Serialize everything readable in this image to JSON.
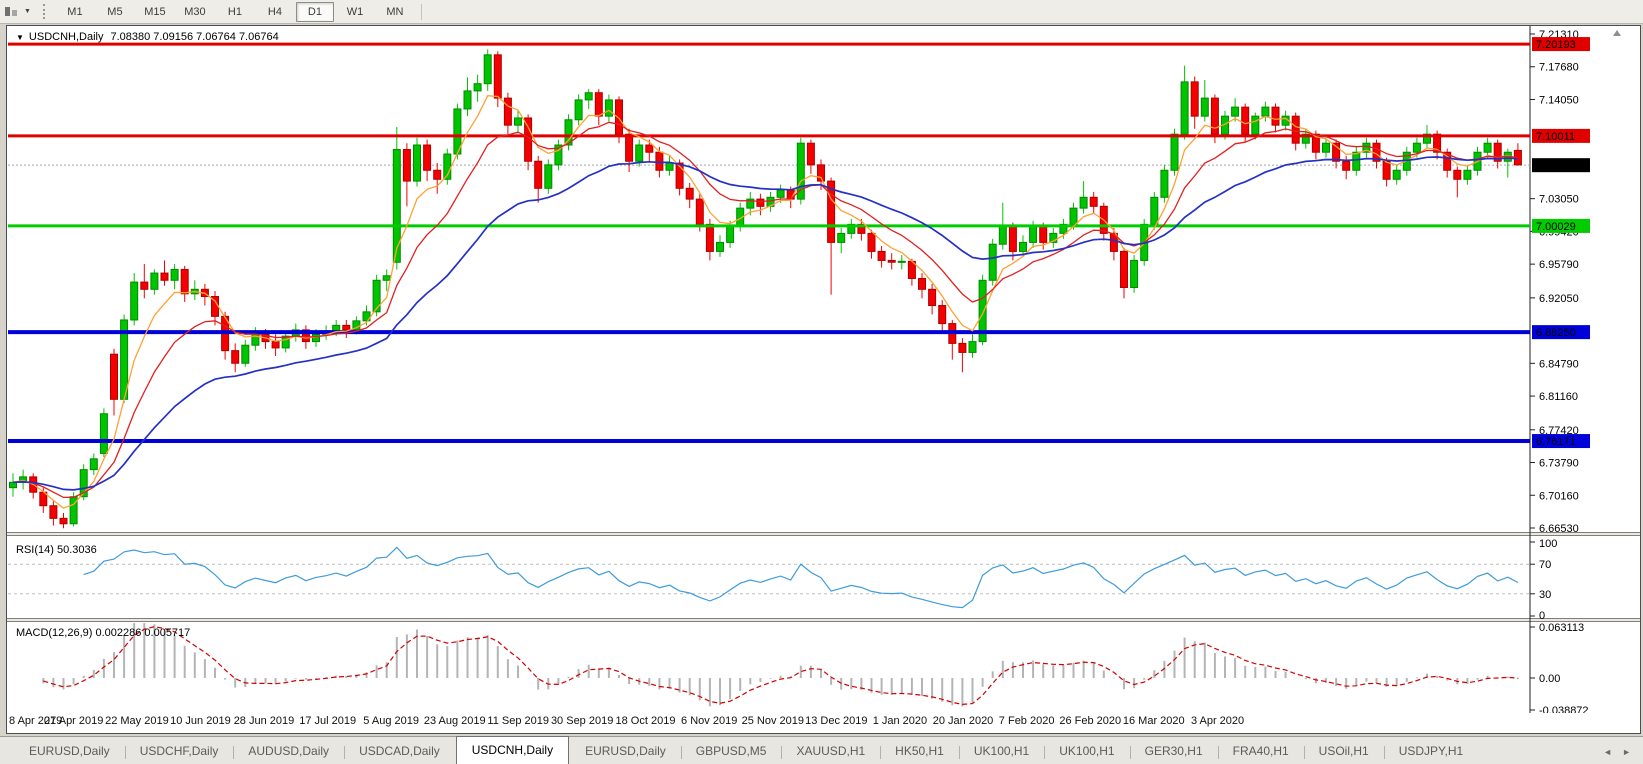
{
  "window": {
    "title_symbol": "USDCNH,Daily",
    "title_ohlc": "7.08380 7.09156 7.06764 7.06764"
  },
  "icons": {
    "caret_down": "▼",
    "scroll_left": "◄",
    "scroll_right": "►"
  },
  "toolbar": {
    "timeframes": [
      {
        "label": "M1",
        "active": false
      },
      {
        "label": "M5",
        "active": false
      },
      {
        "label": "M15",
        "active": false
      },
      {
        "label": "M30",
        "active": false
      },
      {
        "label": "H1",
        "active": false
      },
      {
        "label": "H4",
        "active": false
      },
      {
        "label": "D1",
        "active": true
      },
      {
        "label": "W1",
        "active": false
      },
      {
        "label": "MN",
        "active": false
      }
    ]
  },
  "price_axis": {
    "ticks": [
      {
        "label": "7.21310",
        "value": 7.2131
      },
      {
        "label": "7.17680",
        "value": 7.1768
      },
      {
        "label": "7.14050",
        "value": 7.1405
      },
      {
        "label": "7.03050",
        "value": 7.0305
      },
      {
        "label": "6.99420",
        "value": 6.9942
      },
      {
        "label": "6.95790",
        "value": 6.9579
      },
      {
        "label": "6.92050",
        "value": 6.9205
      },
      {
        "label": "6.84790",
        "value": 6.8479
      },
      {
        "label": "6.81160",
        "value": 6.8116
      },
      {
        "label": "6.77420",
        "value": 6.7742
      },
      {
        "label": "6.73790",
        "value": 6.7379
      },
      {
        "label": "6.70160",
        "value": 6.7016
      },
      {
        "label": "6.66530",
        "value": 6.6653
      }
    ],
    "line_labels": [
      {
        "label": "7.20193",
        "value": 7.20193,
        "bg": "#e00000",
        "fg": "#ffffff"
      },
      {
        "label": "7.10011",
        "value": 7.10011,
        "bg": "#e00000",
        "fg": "#ffffff"
      },
      {
        "label": "7.06764",
        "value": 7.06764,
        "bg": "#000000",
        "fg": "#ffffff"
      },
      {
        "label": "7.00029",
        "value": 7.00029,
        "bg": "#00cc00",
        "fg": "#ffffff"
      },
      {
        "label": "6.88250",
        "value": 6.8825,
        "bg": "#0000d8",
        "fg": "#ffffff"
      },
      {
        "label": "6.76171",
        "value": 6.76171,
        "bg": "#0000d8",
        "fg": "#ffffff"
      }
    ]
  },
  "chart_data": {
    "type": "candlestick",
    "symbol": "USDCNH",
    "timeframe": "Daily",
    "price_range": {
      "max": 7.2131,
      "min": 6.6653
    },
    "current_price": 7.06764,
    "up_color": "#00c400",
    "down_color": "#f40000",
    "ma_colors": {
      "fast": "#ffa133",
      "mid": "#e02020",
      "slow": "#2431c4"
    },
    "horizontal_lines": [
      {
        "value": 7.20193,
        "color": "#e00000",
        "width": 3
      },
      {
        "value": 7.10011,
        "color": "#e00000",
        "width": 3
      },
      {
        "value": 7.00029,
        "color": "#00cc00",
        "width": 3
      },
      {
        "value": 6.8825,
        "color": "#0000d8",
        "width": 4
      },
      {
        "value": 6.76171,
        "color": "#0000d8",
        "width": 4
      }
    ],
    "x_labels": [
      "8 Apr 2019",
      "27 Apr 2019",
      "22 May 2019",
      "10 Jun 2019",
      "28 Jun 2019",
      "17 Jul 2019",
      "5 Aug 2019",
      "23 Aug 2019",
      "11 Sep 2019",
      "30 Sep 2019",
      "18 Oct 2019",
      "6 Nov 2019",
      "25 Nov 2019",
      "13 Dec 2019",
      "1 Jan 2020",
      "20 Jan 2020",
      "7 Feb 2020",
      "26 Feb 2020",
      "16 Mar 2020",
      "3 Apr 2020"
    ],
    "candles": [
      [
        6.71,
        6.726,
        6.7,
        6.716
      ],
      [
        6.716,
        6.73,
        6.708,
        6.722
      ],
      [
        6.722,
        6.726,
        6.698,
        6.705
      ],
      [
        6.705,
        6.71,
        6.682,
        6.69
      ],
      [
        6.69,
        6.695,
        6.668,
        6.676
      ],
      [
        6.676,
        6.682,
        6.665,
        6.67
      ],
      [
        6.67,
        6.705,
        6.667,
        6.7
      ],
      [
        6.7,
        6.736,
        6.696,
        6.73
      ],
      [
        6.73,
        6.748,
        6.724,
        6.742
      ],
      [
        6.748,
        6.798,
        6.744,
        6.792
      ],
      [
        6.858,
        6.864,
        6.79,
        6.808
      ],
      [
        6.808,
        6.902,
        6.804,
        6.896
      ],
      [
        6.896,
        6.948,
        6.89,
        6.938
      ],
      [
        6.938,
        6.958,
        6.92,
        6.93
      ],
      [
        6.93,
        6.952,
        6.924,
        6.948
      ],
      [
        6.948,
        6.962,
        6.934,
        6.94
      ],
      [
        6.94,
        6.958,
        6.93,
        6.952
      ],
      [
        6.952,
        6.956,
        6.916,
        6.925
      ],
      [
        6.925,
        6.94,
        6.918,
        6.93
      ],
      [
        6.93,
        6.936,
        6.912,
        6.922
      ],
      [
        6.922,
        6.928,
        6.89,
        6.9
      ],
      [
        6.9,
        6.905,
        6.852,
        6.862
      ],
      [
        6.862,
        6.87,
        6.838,
        6.848
      ],
      [
        6.848,
        6.874,
        6.844,
        6.868
      ],
      [
        6.868,
        6.888,
        6.862,
        6.88
      ],
      [
        6.88,
        6.886,
        6.864,
        6.872
      ],
      [
        6.872,
        6.88,
        6.856,
        6.865
      ],
      [
        6.865,
        6.884,
        6.86,
        6.878
      ],
      [
        6.878,
        6.892,
        6.872,
        6.885
      ],
      [
        6.885,
        6.89,
        6.864,
        6.872
      ],
      [
        6.872,
        6.886,
        6.866,
        6.88
      ],
      [
        6.88,
        6.89,
        6.874,
        6.884
      ],
      [
        6.884,
        6.896,
        6.878,
        6.89
      ],
      [
        6.89,
        6.896,
        6.876,
        6.885
      ],
      [
        6.885,
        6.9,
        6.88,
        6.895
      ],
      [
        6.895,
        6.912,
        6.89,
        6.905
      ],
      [
        6.905,
        6.946,
        6.9,
        6.94
      ],
      [
        6.94,
        6.952,
        6.928,
        6.945
      ],
      [
        6.96,
        7.11,
        6.952,
        7.085
      ],
      [
        7.085,
        7.092,
        7.022,
        7.05
      ],
      [
        7.05,
        7.098,
        7.044,
        7.09
      ],
      [
        7.09,
        7.096,
        7.05,
        7.062
      ],
      [
        7.062,
        7.07,
        7.036,
        7.052
      ],
      [
        7.052,
        7.086,
        7.046,
        7.08
      ],
      [
        7.08,
        7.136,
        7.074,
        7.13
      ],
      [
        7.13,
        7.165,
        7.122,
        7.15
      ],
      [
        7.15,
        7.168,
        7.138,
        7.158
      ],
      [
        7.158,
        7.196,
        7.15,
        7.19
      ],
      [
        7.19,
        7.194,
        7.132,
        7.142
      ],
      [
        7.142,
        7.148,
        7.1,
        7.112
      ],
      [
        7.112,
        7.128,
        7.104,
        7.12
      ],
      [
        7.12,
        7.124,
        7.062,
        7.072
      ],
      [
        7.072,
        7.078,
        7.026,
        7.042
      ],
      [
        7.042,
        7.074,
        7.036,
        7.068
      ],
      [
        7.068,
        7.096,
        7.062,
        7.09
      ],
      [
        7.09,
        7.124,
        7.084,
        7.118
      ],
      [
        7.118,
        7.146,
        7.112,
        7.14
      ],
      [
        7.14,
        7.152,
        7.13,
        7.148
      ],
      [
        7.148,
        7.152,
        7.112,
        7.122
      ],
      [
        7.122,
        7.146,
        7.116,
        7.14
      ],
      [
        7.14,
        7.144,
        7.092,
        7.102
      ],
      [
        7.102,
        7.108,
        7.06,
        7.072
      ],
      [
        7.072,
        7.096,
        7.066,
        7.09
      ],
      [
        7.09,
        7.096,
        7.072,
        7.082
      ],
      [
        7.082,
        7.088,
        7.054,
        7.062
      ],
      [
        7.062,
        7.078,
        7.056,
        7.07
      ],
      [
        7.07,
        7.074,
        7.034,
        7.042
      ],
      [
        7.042,
        7.048,
        7.02,
        7.03
      ],
      [
        7.03,
        7.036,
        6.994,
        7.002
      ],
      [
        7.002,
        7.008,
        6.962,
        6.972
      ],
      [
        6.972,
        6.99,
        6.966,
        6.982
      ],
      [
        6.982,
        7.006,
        6.976,
        7.0
      ],
      [
        7.0,
        7.026,
        6.994,
        7.02
      ],
      [
        7.02,
        7.038,
        7.012,
        7.03
      ],
      [
        7.03,
        7.036,
        7.012,
        7.022
      ],
      [
        7.022,
        7.038,
        7.016,
        7.032
      ],
      [
        7.032,
        7.046,
        7.026,
        7.04
      ],
      [
        7.04,
        7.044,
        7.02,
        7.03
      ],
      [
        7.03,
        7.098,
        7.024,
        7.092
      ],
      [
        7.092,
        7.096,
        7.058,
        7.068
      ],
      [
        7.068,
        7.074,
        7.04,
        7.05
      ],
      [
        7.05,
        7.054,
        6.924,
        6.982
      ],
      [
        6.982,
        6.998,
        6.97,
        6.992
      ],
      [
        6.992,
        7.008,
        6.986,
        7.002
      ],
      [
        7.002,
        7.008,
        6.984,
        6.992
      ],
      [
        6.992,
        6.996,
        6.964,
        6.972
      ],
      [
        6.972,
        6.978,
        6.954,
        6.962
      ],
      [
        6.962,
        6.97,
        6.952,
        6.96
      ],
      [
        6.96,
        6.968,
        6.952,
        6.961
      ],
      [
        6.961,
        6.964,
        6.934,
        6.942
      ],
      [
        6.942,
        6.948,
        6.92,
        6.93
      ],
      [
        6.93,
        6.936,
        6.902,
        6.912
      ],
      [
        6.912,
        6.918,
        6.884,
        6.892
      ],
      [
        6.892,
        6.896,
        6.852,
        6.87
      ],
      [
        6.87,
        6.876,
        6.838,
        6.86
      ],
      [
        6.86,
        6.88,
        6.854,
        6.872
      ],
      [
        6.872,
        6.946,
        6.868,
        6.94
      ],
      [
        6.94,
        6.986,
        6.934,
        6.98
      ],
      [
        6.98,
        7.026,
        6.974,
        7.0
      ],
      [
        7.0,
        7.004,
        6.962,
        6.972
      ],
      [
        6.972,
        6.99,
        6.966,
        6.982
      ],
      [
        6.982,
        7.006,
        6.976,
        7.0
      ],
      [
        7.0,
        7.004,
        6.974,
        6.982
      ],
      [
        6.982,
        6.998,
        6.976,
        6.992
      ],
      [
        6.992,
        7.008,
        6.986,
        7.002
      ],
      [
        7.002,
        7.026,
        6.996,
        7.02
      ],
      [
        7.02,
        7.05,
        7.014,
        7.032
      ],
      [
        7.032,
        7.038,
        7.014,
        7.022
      ],
      [
        7.022,
        7.026,
        6.984,
        6.992
      ],
      [
        6.992,
        6.998,
        6.962,
        6.972
      ],
      [
        6.972,
        6.976,
        6.92,
        6.932
      ],
      [
        6.932,
        6.968,
        6.926,
        6.962
      ],
      [
        6.962,
        7.008,
        6.956,
        7.002
      ],
      [
        7.002,
        7.038,
        6.996,
        7.032
      ],
      [
        7.032,
        7.068,
        7.026,
        7.062
      ],
      [
        7.062,
        7.108,
        7.056,
        7.102
      ],
      [
        7.102,
        7.178,
        7.096,
        7.16
      ],
      [
        7.16,
        7.166,
        7.108,
        7.122
      ],
      [
        7.122,
        7.162,
        7.116,
        7.142
      ],
      [
        7.142,
        7.146,
        7.092,
        7.102
      ],
      [
        7.102,
        7.128,
        7.096,
        7.122
      ],
      [
        7.122,
        7.142,
        7.116,
        7.132
      ],
      [
        7.132,
        7.136,
        7.094,
        7.102
      ],
      [
        7.102,
        7.126,
        7.096,
        7.122
      ],
      [
        7.122,
        7.138,
        7.116,
        7.132
      ],
      [
        7.132,
        7.136,
        7.104,
        7.112
      ],
      [
        7.112,
        7.128,
        7.106,
        7.122
      ],
      [
        7.122,
        7.126,
        7.084,
        7.092
      ],
      [
        7.092,
        7.108,
        7.086,
        7.102
      ],
      [
        7.102,
        7.106,
        7.074,
        7.082
      ],
      [
        7.082,
        7.098,
        7.076,
        7.092
      ],
      [
        7.092,
        7.096,
        7.064,
        7.072
      ],
      [
        7.072,
        7.078,
        7.052,
        7.062
      ],
      [
        7.062,
        7.088,
        7.056,
        7.082
      ],
      [
        7.082,
        7.098,
        7.076,
        7.092
      ],
      [
        7.092,
        7.096,
        7.064,
        7.072
      ],
      [
        7.072,
        7.076,
        7.044,
        7.052
      ],
      [
        7.052,
        7.068,
        7.046,
        7.062
      ],
      [
        7.062,
        7.088,
        7.056,
        7.082
      ],
      [
        7.082,
        7.098,
        7.076,
        7.092
      ],
      [
        7.092,
        7.112,
        7.086,
        7.102
      ],
      [
        7.102,
        7.106,
        7.074,
        7.082
      ],
      [
        7.082,
        7.086,
        7.054,
        7.062
      ],
      [
        7.062,
        7.066,
        7.032,
        7.052
      ],
      [
        7.052,
        7.068,
        7.046,
        7.062
      ],
      [
        7.062,
        7.088,
        7.056,
        7.082
      ],
      [
        7.082,
        7.098,
        7.076,
        7.092
      ],
      [
        7.092,
        7.096,
        7.064,
        7.072
      ],
      [
        7.072,
        7.086,
        7.054,
        7.082
      ],
      [
        7.084,
        7.092,
        7.067,
        7.068
      ]
    ]
  },
  "rsi_panel": {
    "label": "RSI(14) 50.3036",
    "line_color": "#3e9cdc",
    "levels": [
      {
        "label": "100",
        "value": 100
      },
      {
        "label": "70",
        "value": 70
      },
      {
        "label": "30",
        "value": 30
      },
      {
        "label": "0",
        "value": 0
      }
    ]
  },
  "macd_panel": {
    "label": "MACD(12,26,9) 0.002286 0.005717",
    "histogram_color": "#b4b4b4",
    "signal_color": "#d40000",
    "axis": [
      {
        "label": "0.063113",
        "value": 0.063113
      },
      {
        "label": "0.00",
        "value": 0
      },
      {
        "label": "-0.038872",
        "value": -0.038872
      }
    ]
  },
  "tab_bar": {
    "tabs": [
      {
        "label": "EURUSD,Daily",
        "active": false
      },
      {
        "label": "USDCHF,Daily",
        "active": false
      },
      {
        "label": "AUDUSD,Daily",
        "active": false
      },
      {
        "label": "USDCAD,Daily",
        "active": false
      },
      {
        "label": "USDCNH,Daily",
        "active": true
      },
      {
        "label": "EURUSD,Daily",
        "active": false
      },
      {
        "label": "GBPUSD,M5",
        "active": false
      },
      {
        "label": "XAUUSD,H1",
        "active": false
      },
      {
        "label": "HK50,H1",
        "active": false
      },
      {
        "label": "UK100,H1",
        "active": false
      },
      {
        "label": "UK100,H1",
        "active": false
      },
      {
        "label": "GER30,H1",
        "active": false
      },
      {
        "label": "FRA40,H1",
        "active": false
      },
      {
        "label": "USOil,H1",
        "active": false
      },
      {
        "label": "USDJPY,H1",
        "active": false
      }
    ]
  }
}
